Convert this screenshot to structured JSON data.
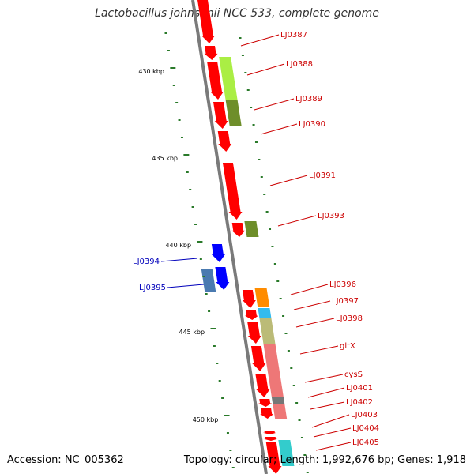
{
  "title": "Lactobacillus johnsonii NCC 533, complete genome",
  "footer": {
    "accession": "Accession: NC_005362",
    "summary": "Topology: circular; Length: 1,992,676 bp; Genes: 1,918"
  },
  "colors": {
    "backbone": "#7a7a7a",
    "forward_cds": "#ff0000",
    "reverse_cds": "#0000ff",
    "label_forward": "#cc0000",
    "label_reverse": "#0000bb",
    "tick": "#2a7a2a"
  },
  "ticks": [
    "430 kbp",
    "435 kbp",
    "440 kbp",
    "445 kbp",
    "450 kbp"
  ],
  "gene_labels": [
    {
      "name": "LJ0387",
      "strand": "forward"
    },
    {
      "name": "LJ0388",
      "strand": "forward"
    },
    {
      "name": "LJ0389",
      "strand": "forward"
    },
    {
      "name": "LJ0390",
      "strand": "forward"
    },
    {
      "name": "LJ0391",
      "strand": "forward"
    },
    {
      "name": "LJ0393",
      "strand": "forward"
    },
    {
      "name": "LJ0394",
      "strand": "reverse"
    },
    {
      "name": "LJ0395",
      "strand": "reverse"
    },
    {
      "name": "LJ0396",
      "strand": "forward"
    },
    {
      "name": "LJ0397",
      "strand": "forward"
    },
    {
      "name": "LJ0398",
      "strand": "forward"
    },
    {
      "name": "gltX",
      "strand": "forward"
    },
    {
      "name": "cysS",
      "strand": "forward"
    },
    {
      "name": "LJ0401",
      "strand": "forward"
    },
    {
      "name": "LJ0402",
      "strand": "forward"
    },
    {
      "name": "LJ0403",
      "strand": "forward"
    },
    {
      "name": "LJ0404",
      "strand": "forward"
    },
    {
      "name": "LJ0405",
      "strand": "forward"
    }
  ],
  "cog_colors": [
    "#aaee44",
    "#6e8e2a",
    "#6e8e2a",
    "#ff8c00",
    "#33bbee",
    "#bbbb77",
    "#ee7777",
    "#ee7777",
    "#777777",
    "#33cccc"
  ]
}
